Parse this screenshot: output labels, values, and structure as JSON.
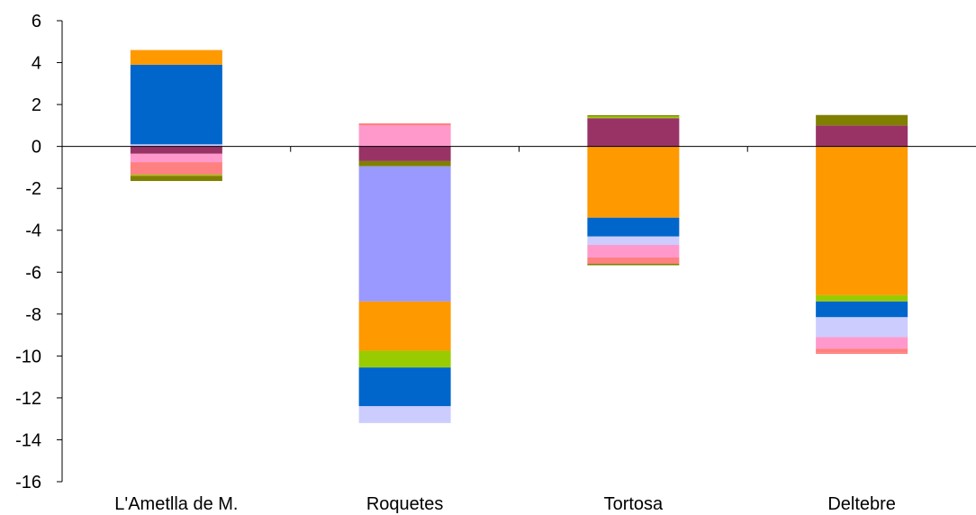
{
  "chart_data": {
    "type": "bar",
    "stacked": true,
    "categories": [
      "L'Ametlla de M.",
      "Roquetes",
      "Tortosa",
      "Deltebre"
    ],
    "ylim": [
      -16,
      6
    ],
    "yticks": [
      6,
      4,
      2,
      0,
      -2,
      -4,
      -6,
      -8,
      -10,
      -12,
      -14,
      -16
    ],
    "grid": false,
    "legend": "none",
    "title": "",
    "xlabel": "",
    "ylabel": "",
    "series": [
      {
        "color": "#ccccff",
        "values": [
          0.1,
          0,
          0,
          0
        ]
      },
      {
        "color": "#0066cc",
        "values": [
          3.8,
          0,
          0,
          0
        ]
      },
      {
        "color": "#ff9900",
        "values": [
          0.7,
          0,
          0,
          0
        ]
      },
      {
        "color": "#993366",
        "values": [
          -0.35,
          -0.7,
          1.35,
          1.0
        ]
      },
      {
        "color": "#ff99cc",
        "values": [
          -0.4,
          1.0,
          0,
          0
        ]
      },
      {
        "color": "#ff8080",
        "values": [
          -0.6,
          0.1,
          0,
          0
        ]
      },
      {
        "color": "#99cc00",
        "values": [
          -0.05,
          0,
          0.08,
          0
        ]
      },
      {
        "color": "#808000",
        "values": [
          -0.25,
          -0.25,
          0.06,
          0.5
        ]
      },
      {
        "color": "#9999ff",
        "values": [
          0,
          -6.45,
          0,
          0
        ]
      },
      {
        "color": "#ff9900",
        "values": [
          0,
          -2.35,
          -3.4,
          -7.1
        ]
      },
      {
        "color": "#99cc00",
        "values": [
          0,
          -0.8,
          0,
          -0.3
        ]
      },
      {
        "color": "#0066cc",
        "values": [
          0,
          -1.85,
          -0.9,
          -0.75
        ]
      },
      {
        "color": "#ccccff",
        "values": [
          0,
          -0.8,
          -0.4,
          -0.95
        ]
      },
      {
        "color": "#ff99cc",
        "values": [
          0,
          0,
          -0.6,
          -0.55
        ]
      },
      {
        "color": "#ff8080",
        "values": [
          0,
          0,
          -0.3,
          -0.2
        ]
      },
      {
        "color": "#808000",
        "values": [
          0,
          0,
          -0.07,
          0
        ]
      },
      {
        "color": "#ff8080",
        "values": [
          0,
          0,
          0,
          -0.05
        ]
      }
    ]
  }
}
